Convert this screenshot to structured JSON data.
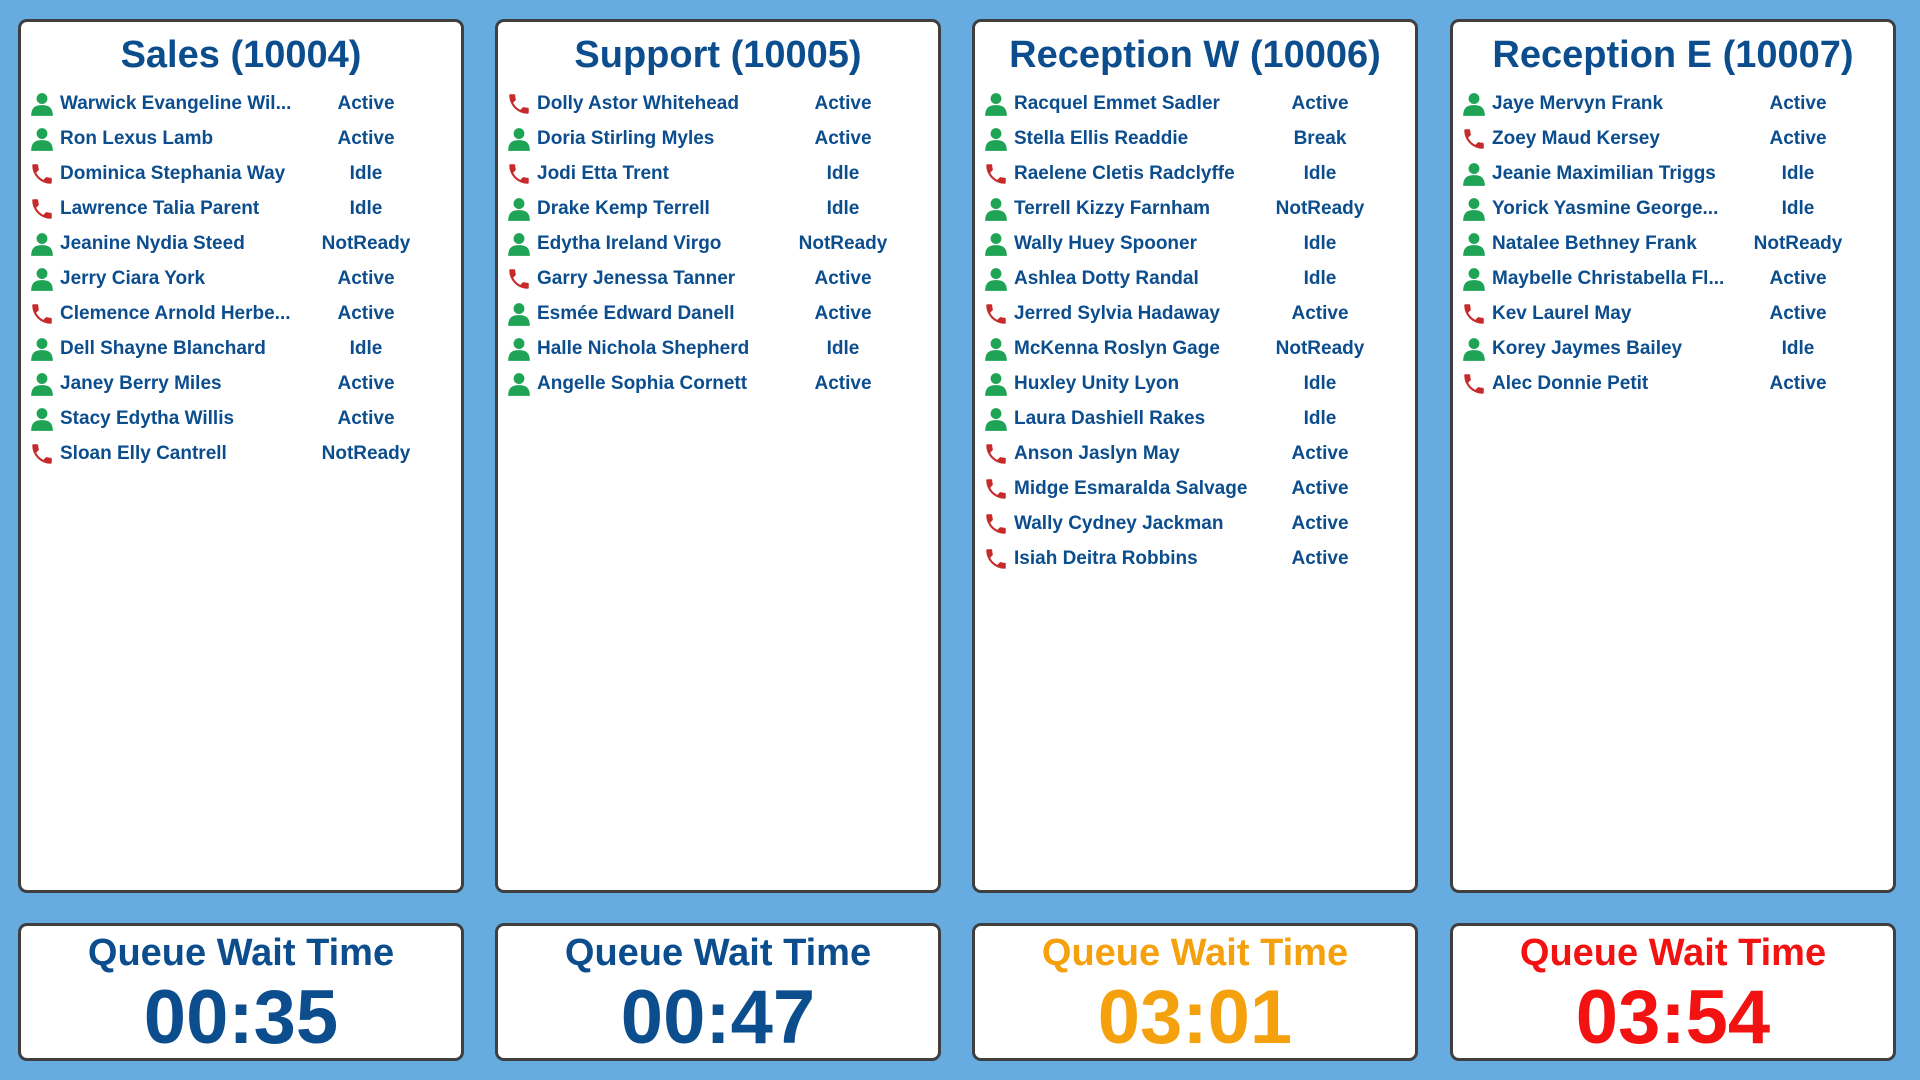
{
  "colors": {
    "background": "#66ace0",
    "text": "#0c4d8e",
    "agent_icon": "#1fa355",
    "phone_icon": "#c62a2a",
    "wait_normal": "#0c4d8e",
    "wait_warning": "#f5a00d",
    "wait_critical": "#f21212"
  },
  "queues": [
    {
      "title": "Sales (10004)",
      "agents": [
        {
          "icon": "agent-icon",
          "name": "Warwick Evangeline Wil...",
          "status": "Active"
        },
        {
          "icon": "agent-icon",
          "name": "Ron Lexus Lamb",
          "status": "Active"
        },
        {
          "icon": "phone-icon",
          "name": "Dominica Stephania Way",
          "status": "Idle"
        },
        {
          "icon": "phone-icon",
          "name": "Lawrence Talia Parent",
          "status": "Idle"
        },
        {
          "icon": "agent-icon",
          "name": "Jeanine Nydia Steed",
          "status": "NotReady"
        },
        {
          "icon": "agent-icon",
          "name": "Jerry Ciara York",
          "status": "Active"
        },
        {
          "icon": "phone-icon",
          "name": "Clemence Arnold Herbe...",
          "status": "Active"
        },
        {
          "icon": "agent-icon",
          "name": "Dell Shayne Blanchard",
          "status": "Idle"
        },
        {
          "icon": "agent-icon",
          "name": "Janey Berry Miles",
          "status": "Active"
        },
        {
          "icon": "agent-icon",
          "name": "Stacy Edytha Willis",
          "status": "Active"
        },
        {
          "icon": "phone-icon",
          "name": "Sloan Elly Cantrell",
          "status": "NotReady"
        }
      ],
      "wait": {
        "label": "Queue Wait Time",
        "time": "00:35",
        "level": "normal"
      }
    },
    {
      "title": "Support (10005)",
      "agents": [
        {
          "icon": "phone-icon",
          "name": "Dolly Astor Whitehead",
          "status": "Active"
        },
        {
          "icon": "agent-icon",
          "name": "Doria Stirling Myles",
          "status": "Active"
        },
        {
          "icon": "phone-icon",
          "name": "Jodi Etta Trent",
          "status": "Idle"
        },
        {
          "icon": "agent-icon",
          "name": "Drake Kemp Terrell",
          "status": "Idle"
        },
        {
          "icon": "agent-icon",
          "name": "Edytha Ireland Virgo",
          "status": "NotReady"
        },
        {
          "icon": "phone-icon",
          "name": "Garry Jenessa Tanner",
          "status": "Active"
        },
        {
          "icon": "agent-icon",
          "name": "Esmée Edward Danell",
          "status": "Active"
        },
        {
          "icon": "agent-icon",
          "name": "Halle Nichola Shepherd",
          "status": "Idle"
        },
        {
          "icon": "agent-icon",
          "name": "Angelle Sophia Cornett",
          "status": "Active"
        }
      ],
      "wait": {
        "label": "Queue Wait Time",
        "time": "00:47",
        "level": "normal"
      }
    },
    {
      "title": "Reception W (10006)",
      "agents": [
        {
          "icon": "agent-icon",
          "name": "Racquel Emmet Sadler",
          "status": "Active"
        },
        {
          "icon": "agent-icon",
          "name": "Stella Ellis Readdie",
          "status": "Break"
        },
        {
          "icon": "phone-icon",
          "name": "Raelene Cletis Radclyffe",
          "status": "Idle"
        },
        {
          "icon": "agent-icon",
          "name": "Terrell Kizzy Farnham",
          "status": "NotReady"
        },
        {
          "icon": "agent-icon",
          "name": "Wally Huey Spooner",
          "status": "Idle"
        },
        {
          "icon": "agent-icon",
          "name": "Ashlea Dotty Randal",
          "status": "Idle"
        },
        {
          "icon": "phone-icon",
          "name": "Jerred Sylvia Hadaway",
          "status": "Active"
        },
        {
          "icon": "agent-icon",
          "name": "McKenna Roslyn Gage",
          "status": "NotReady"
        },
        {
          "icon": "agent-icon",
          "name": "Huxley Unity Lyon",
          "status": "Idle"
        },
        {
          "icon": "agent-icon",
          "name": "Laura Dashiell Rakes",
          "status": "Idle"
        },
        {
          "icon": "phone-icon",
          "name": "Anson Jaslyn May",
          "status": "Active"
        },
        {
          "icon": "phone-icon",
          "name": "Midge Esmaralda Salvage",
          "status": "Active"
        },
        {
          "icon": "phone-icon",
          "name": "Wally Cydney Jackman",
          "status": "Active"
        },
        {
          "icon": "phone-icon",
          "name": "Isiah Deitra Robbins",
          "status": "Active"
        }
      ],
      "wait": {
        "label": "Queue Wait Time",
        "time": "03:01",
        "level": "warning"
      }
    },
    {
      "title": "Reception E (10007)",
      "agents": [
        {
          "icon": "agent-icon",
          "name": "Jaye Mervyn Frank",
          "status": "Active"
        },
        {
          "icon": "phone-icon",
          "name": "Zoey Maud Kersey",
          "status": "Active"
        },
        {
          "icon": "agent-icon",
          "name": "Jeanie Maximilian Triggs",
          "status": "Idle"
        },
        {
          "icon": "agent-icon",
          "name": "Yorick Yasmine George...",
          "status": "Idle"
        },
        {
          "icon": "agent-icon",
          "name": "Natalee Bethney Frank",
          "status": "NotReady"
        },
        {
          "icon": "agent-icon",
          "name": "Maybelle Christabella Fl...",
          "status": "Active"
        },
        {
          "icon": "phone-icon",
          "name": "Kev Laurel May",
          "status": "Active"
        },
        {
          "icon": "agent-icon",
          "name": "Korey Jaymes Bailey",
          "status": "Idle"
        },
        {
          "icon": "phone-icon",
          "name": "Alec Donnie Petit",
          "status": "Active"
        }
      ],
      "wait": {
        "label": "Queue Wait Time",
        "time": "03:54",
        "level": "critical"
      }
    }
  ]
}
